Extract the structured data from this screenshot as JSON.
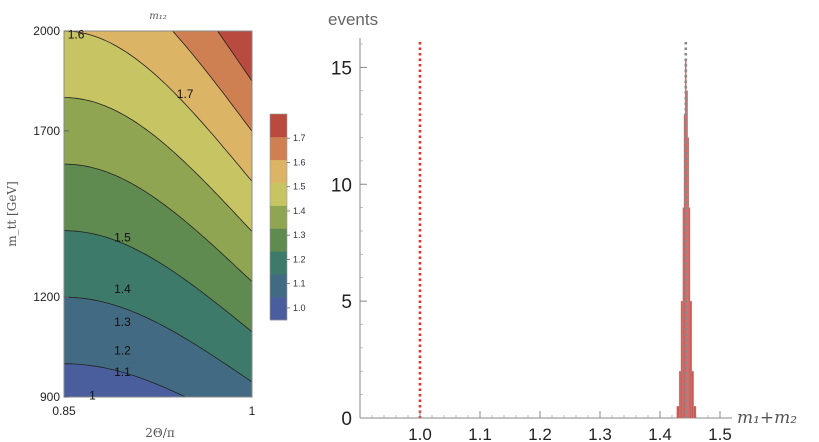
{
  "chart_data": [
    {
      "type": "contour",
      "title": "m₁₂",
      "xlabel": "2Θ/π",
      "ylabel": "m_tt [GeV]",
      "xlim": [
        0.85,
        1.0
      ],
      "ylim": [
        900,
        2000
      ],
      "x_ticks": [
        "0.85",
        "1"
      ],
      "y_ticks": [
        "900",
        "1200",
        "1700",
        "2000"
      ],
      "contour_levels": [
        1.0,
        1.1,
        1.2,
        1.3,
        1.4,
        1.5,
        1.6,
        1.7
      ],
      "contour_labels": [
        {
          "text": "1",
          "x": 0.87,
          "y": 905
        },
        {
          "text": "1.1",
          "x": 0.89,
          "y": 975
        },
        {
          "text": "1.2",
          "x": 0.89,
          "y": 1040
        },
        {
          "text": "1.3",
          "x": 0.89,
          "y": 1125
        },
        {
          "text": "1.4",
          "x": 0.89,
          "y": 1225
        },
        {
          "text": "1.5",
          "x": 0.89,
          "y": 1380
        },
        {
          "text": "1.6",
          "x": 0.853,
          "y": 1990
        },
        {
          "text": "1.7",
          "x": 0.94,
          "y": 1810
        }
      ],
      "color_bands": [
        {
          "range": [
            0.95,
            1.0
          ],
          "color": "#4a5e9e"
        },
        {
          "range": [
            1.0,
            1.1
          ],
          "color": "#426a82"
        },
        {
          "range": [
            1.1,
            1.2
          ],
          "color": "#3d7a6a"
        },
        {
          "range": [
            1.2,
            1.3
          ],
          "color": "#5f8a50"
        },
        {
          "range": [
            1.3,
            1.4
          ],
          "color": "#8fa552"
        },
        {
          "range": [
            1.4,
            1.5
          ],
          "color": "#c7c463"
        },
        {
          "range": [
            1.5,
            1.6
          ],
          "color": "#dcb466"
        },
        {
          "range": [
            1.6,
            1.7
          ],
          "color": "#cf8052"
        },
        {
          "range": [
            1.7,
            1.8
          ],
          "color": "#b94a3f"
        }
      ],
      "colorbar_ticks": [
        "1.0",
        "1.1",
        "1.2",
        "1.3",
        "1.4",
        "1.5",
        "1.6",
        "1.7"
      ]
    },
    {
      "type": "histogram",
      "title": "events",
      "xlabel": "m₁+m₂",
      "xlim": [
        0.9,
        1.52
      ],
      "ylim": [
        0,
        16
      ],
      "x_ticks": [
        "1.0",
        "1.1",
        "1.2",
        "1.3",
        "1.4",
        "1.5"
      ],
      "y_ticks": [
        "0",
        "5",
        "10",
        "15"
      ],
      "bar_color": "#b63d3a",
      "bins": [
        {
          "x0": 1.428,
          "x1": 1.432,
          "count": 0.5
        },
        {
          "x0": 1.432,
          "x1": 1.435,
          "count": 2
        },
        {
          "x0": 1.435,
          "x1": 1.438,
          "count": 5
        },
        {
          "x0": 1.438,
          "x1": 1.44,
          "count": 9
        },
        {
          "x0": 1.44,
          "x1": 1.442,
          "count": 13
        },
        {
          "x0": 1.442,
          "x1": 1.444,
          "count": 15.3
        },
        {
          "x0": 1.444,
          "x1": 1.446,
          "count": 14
        },
        {
          "x0": 1.446,
          "x1": 1.448,
          "count": 12
        },
        {
          "x0": 1.448,
          "x1": 1.45,
          "count": 9
        },
        {
          "x0": 1.45,
          "x1": 1.453,
          "count": 5
        },
        {
          "x0": 1.453,
          "x1": 1.456,
          "count": 2
        },
        {
          "x0": 1.456,
          "x1": 1.46,
          "count": 0.5
        }
      ],
      "reference_lines": [
        {
          "x": 1.0,
          "color": "#e8302a",
          "style": "dotted"
        },
        {
          "x": 1.443,
          "color": "#888888",
          "style": "dotted"
        }
      ]
    }
  ]
}
